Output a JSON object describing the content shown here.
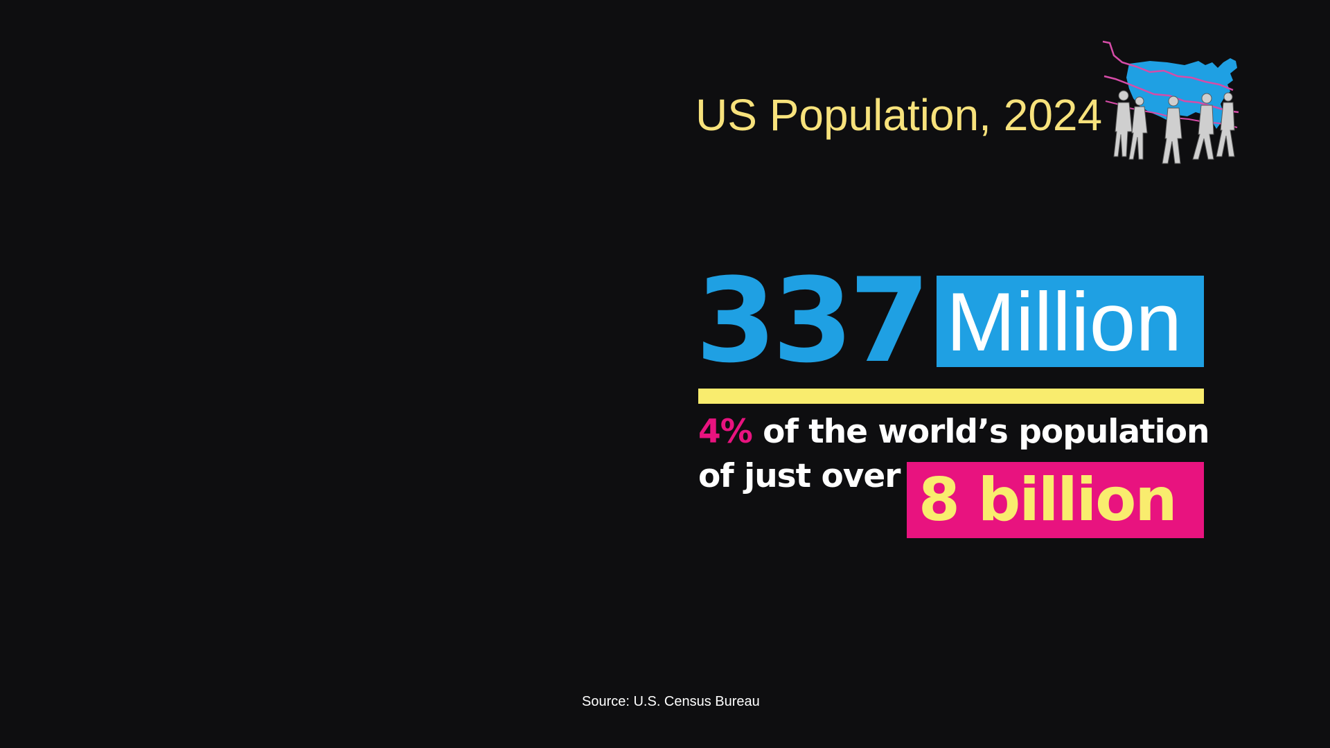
{
  "title": "US Population, 2024",
  "headline": {
    "number": "337",
    "unit": "Million"
  },
  "detail": {
    "percent": "4%",
    "line1_rest": " of the world’s population",
    "line2": "of just over",
    "highlight": "8 billion"
  },
  "source": "Source: U.S. Census Bureau",
  "illustration": {
    "icon": "us-map-with-walking-people-icon"
  },
  "colors": {
    "background": "#0e0e10",
    "title": "#f7e27c",
    "blue": "#1fa0e3",
    "yellow": "#f9ec6e",
    "magenta": "#e8137f",
    "white": "#ffffff"
  }
}
